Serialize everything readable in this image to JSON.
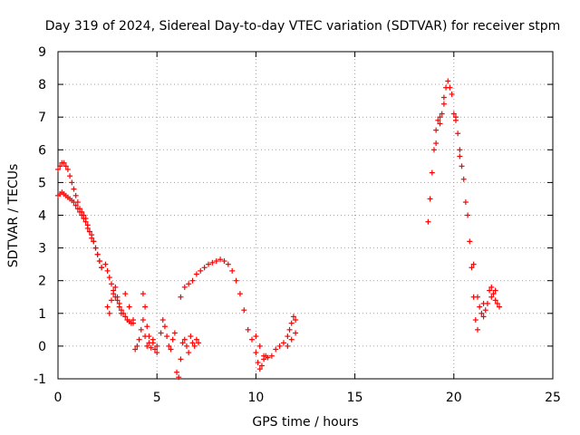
{
  "chart_data": {
    "type": "scatter",
    "title": "Day 319 of 2024, Sidereal Day-to-day VTEC variation (SDTVAR) for receiver stpm",
    "xlabel": "GPS time / hours",
    "ylabel": "SDTVAR / TECUs",
    "xlim": [
      0,
      25
    ],
    "ylim": [
      -1,
      9
    ],
    "xticks": [
      "0",
      "5",
      "10",
      "15",
      "20",
      "25"
    ],
    "yticks": [
      "-1",
      "0",
      "1",
      "2",
      "3",
      "4",
      "5",
      "6",
      "7",
      "8",
      "9"
    ],
    "grid": true,
    "marker": "+",
    "marker_color": "#ff0000",
    "series": [
      {
        "name": "SDTVAR",
        "x": [
          0.0,
          0.1,
          0.2,
          0.3,
          0.4,
          0.5,
          0.6,
          0.7,
          0.8,
          0.9,
          1.0,
          1.1,
          1.2,
          1.3,
          1.4,
          1.5,
          1.6,
          1.7,
          1.8,
          1.9,
          2.0,
          2.1,
          2.2,
          0.0,
          0.1,
          0.2,
          0.3,
          0.4,
          0.5,
          0.6,
          0.7,
          0.8,
          0.9,
          1.0,
          1.1,
          1.2,
          1.3,
          1.4,
          1.5,
          1.6,
          1.7,
          1.8,
          1.9,
          2.0,
          2.1,
          2.2,
          2.4,
          2.5,
          2.6,
          2.7,
          2.8,
          2.9,
          3.0,
          3.1,
          3.2,
          3.3,
          3.4,
          3.5,
          3.6,
          3.7,
          3.8,
          2.5,
          2.6,
          2.7,
          2.8,
          2.9,
          3.0,
          3.1,
          3.2,
          3.4,
          3.6,
          3.8,
          3.9,
          4.0,
          4.1,
          4.2,
          4.3,
          4.4,
          4.5,
          4.6,
          4.7,
          4.8,
          4.9,
          5.0,
          4.3,
          4.4,
          4.5,
          4.6,
          4.8,
          5.0,
          5.2,
          5.3,
          5.4,
          5.5,
          5.6,
          5.7,
          5.8,
          5.9,
          6.0,
          6.1,
          6.2,
          6.3,
          6.4,
          6.5,
          6.6,
          6.7,
          6.8,
          6.9,
          7.0,
          7.1,
          6.2,
          6.4,
          6.6,
          6.8,
          7.0,
          7.2,
          7.4,
          7.6,
          7.8,
          8.0,
          8.2,
          8.4,
          8.6,
          8.8,
          9.0,
          9.2,
          9.4,
          9.6,
          9.8,
          10.0,
          10.1,
          10.2,
          10.3,
          10.4,
          10.5,
          10.6,
          10.8,
          11.0,
          11.2,
          11.4,
          11.6,
          11.7,
          11.8,
          11.9,
          12.0,
          10.0,
          10.2,
          10.4,
          11.6,
          11.8,
          12.0,
          18.7,
          18.8,
          18.9,
          19.0,
          19.1,
          19.2,
          19.3,
          19.4,
          19.5,
          19.6,
          19.7,
          19.8,
          19.9,
          20.0,
          20.1,
          20.2,
          20.3,
          20.4,
          20.5,
          20.6,
          20.7,
          20.8,
          20.9,
          21.0,
          21.1,
          21.2,
          21.3,
          21.4,
          21.5,
          21.6,
          21.7,
          21.8,
          21.9,
          22.0,
          22.1,
          22.2,
          22.3,
          19.1,
          19.3,
          19.5,
          20.1,
          20.3,
          21.0,
          21.2,
          21.5,
          21.9,
          22.1
        ],
        "y": [
          4.6,
          4.65,
          4.7,
          4.65,
          4.6,
          4.55,
          4.5,
          4.45,
          4.4,
          4.3,
          4.2,
          4.1,
          4.0,
          3.9,
          3.8,
          3.6,
          3.5,
          3.3,
          3.2,
          3.0,
          2.8,
          2.6,
          2.4,
          5.4,
          5.5,
          5.6,
          5.6,
          5.5,
          5.4,
          5.2,
          5.0,
          4.8,
          4.6,
          4.4,
          4.2,
          4.1,
          4.0,
          3.9,
          3.7,
          3.5,
          3.4,
          3.2,
          3.0,
          2.8,
          2.6,
          2.4,
          2.5,
          2.3,
          2.1,
          1.9,
          1.7,
          1.5,
          1.4,
          1.3,
          1.1,
          1.0,
          0.9,
          0.8,
          0.75,
          0.7,
          0.7,
          1.2,
          1.0,
          1.4,
          1.6,
          1.8,
          1.5,
          1.2,
          1.0,
          1.6,
          1.2,
          0.8,
          -0.1,
          0.0,
          0.2,
          0.5,
          0.8,
          0.3,
          0.0,
          0.1,
          -0.05,
          0.1,
          -0.1,
          0.0,
          1.6,
          1.2,
          0.6,
          0.3,
          0.2,
          -0.2,
          0.4,
          0.8,
          0.6,
          0.3,
          0.0,
          -0.1,
          0.2,
          0.4,
          -0.8,
          -0.95,
          -0.4,
          0.1,
          0.2,
          0.0,
          -0.2,
          0.3,
          0.1,
          0.0,
          0.2,
          0.1,
          1.5,
          1.8,
          1.9,
          2.0,
          2.2,
          2.3,
          2.4,
          2.5,
          2.55,
          2.6,
          2.65,
          2.6,
          2.5,
          2.3,
          2.0,
          1.6,
          1.1,
          0.5,
          0.2,
          -0.2,
          -0.5,
          -0.7,
          -0.6,
          -0.4,
          -0.3,
          -0.35,
          -0.3,
          -0.1,
          0.0,
          0.1,
          0.3,
          0.5,
          0.7,
          0.9,
          0.8,
          0.3,
          0.0,
          -0.3,
          0.0,
          0.2,
          0.4,
          3.8,
          4.5,
          5.3,
          6.0,
          6.6,
          6.9,
          7.0,
          7.1,
          7.6,
          7.9,
          8.1,
          7.9,
          7.7,
          7.1,
          6.9,
          6.5,
          5.8,
          5.5,
          5.1,
          4.4,
          4.0,
          3.2,
          2.4,
          1.5,
          0.8,
          0.5,
          1.2,
          1.0,
          0.9,
          1.1,
          1.3,
          1.7,
          1.8,
          1.6,
          1.4,
          1.3,
          1.2,
          6.2,
          6.8,
          7.4,
          7.0,
          6.0,
          2.5,
          1.5,
          1.3,
          1.5,
          1.7
        ]
      }
    ]
  }
}
